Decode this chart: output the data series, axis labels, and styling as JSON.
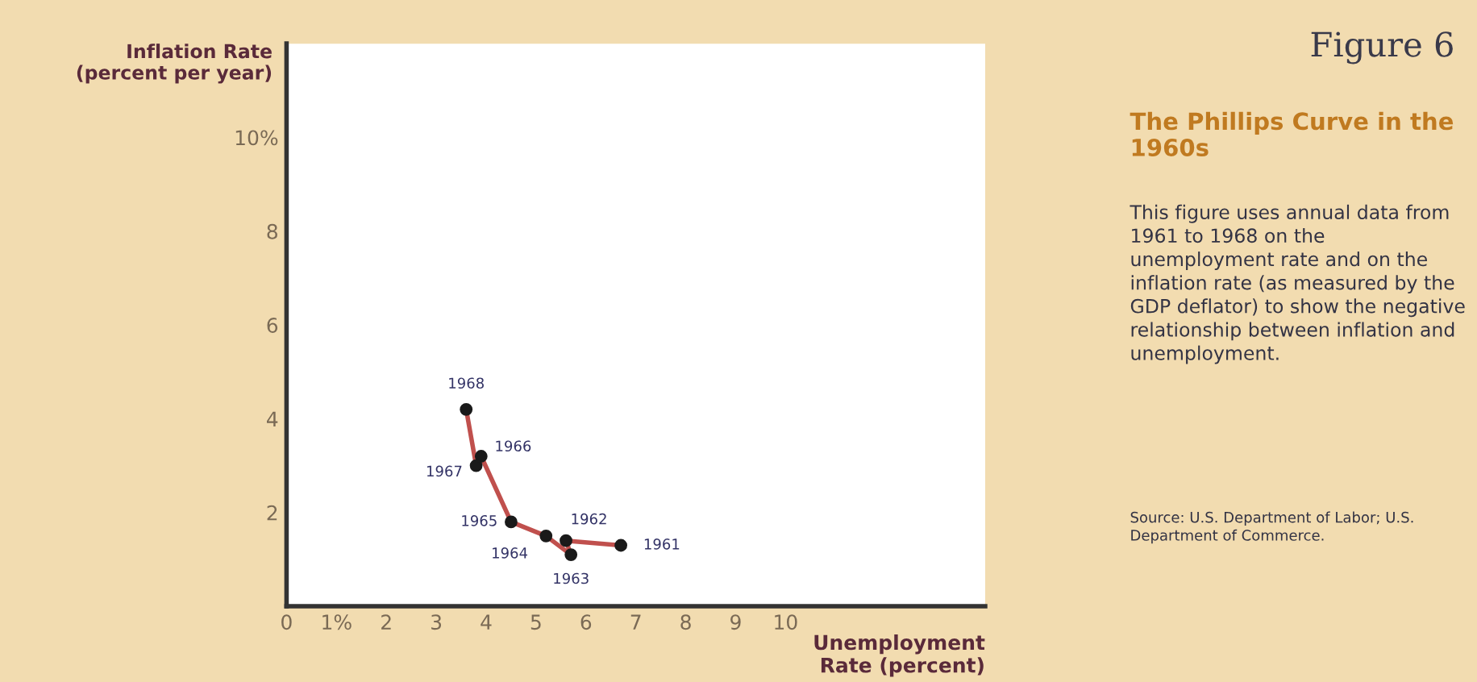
{
  "chart_data": {
    "type": "line",
    "title": "Figure 6",
    "subtitle": "The Phillips Curve in the 1960s",
    "xlabel": "Unemployment\nRate (percent)",
    "ylabel": "Inflation Rate\n(percent per year)",
    "x": [
      6.7,
      5.6,
      5.7,
      5.2,
      4.5,
      3.9,
      3.8,
      3.6
    ],
    "series": [
      {
        "color": "#c0504d",
        "values": [
          1.3,
          1.4,
          1.1,
          1.5,
          1.8,
          3.2,
          3.0,
          4.2
        ]
      },
      {
        "type": "scatter",
        "color": "#1a1a1a",
        "marker": "circle",
        "values": [
          1.3,
          1.4,
          1.1,
          1.5,
          1.8,
          3.2,
          3.0,
          4.2
        ]
      }
    ],
    "xlim": [
      0,
      14
    ],
    "ylim": [
      0,
      12
    ],
    "xticks": [
      0,
      {
        "value": 1,
        "label": "1%"
      },
      2,
      3,
      4,
      5,
      6,
      7,
      8,
      9,
      10
    ],
    "yticks": [
      2,
      4,
      6,
      8,
      {
        "value": 10,
        "label": "10%"
      }
    ],
    "grid": false,
    "annotations": [
      {
        "text": "1961",
        "x": 6.7,
        "y": 1.3
      },
      {
        "text": "1962",
        "x": 5.6,
        "y": 1.4
      },
      {
        "text": "1963",
        "x": 5.7,
        "y": 1.1
      },
      {
        "text": "1964",
        "x": 5.2,
        "y": 1.5
      },
      {
        "text": "1965",
        "x": 4.5,
        "y": 1.8
      },
      {
        "text": "1966",
        "x": 3.9,
        "y": 3.2
      },
      {
        "text": "1967",
        "x": 3.8,
        "y": 3.0
      },
      {
        "text": "1968",
        "x": 3.6,
        "y": 4.2
      },
      "This figure uses annual data from 1961 to 1968 on the unemployment rate and on the inflation rate (as measured by the GDP deflator) to show the negative relationship between inflation and unemployment.",
      "Source: U.S. Department of Labor; U.S. Department of Commerce."
    ]
  }
}
